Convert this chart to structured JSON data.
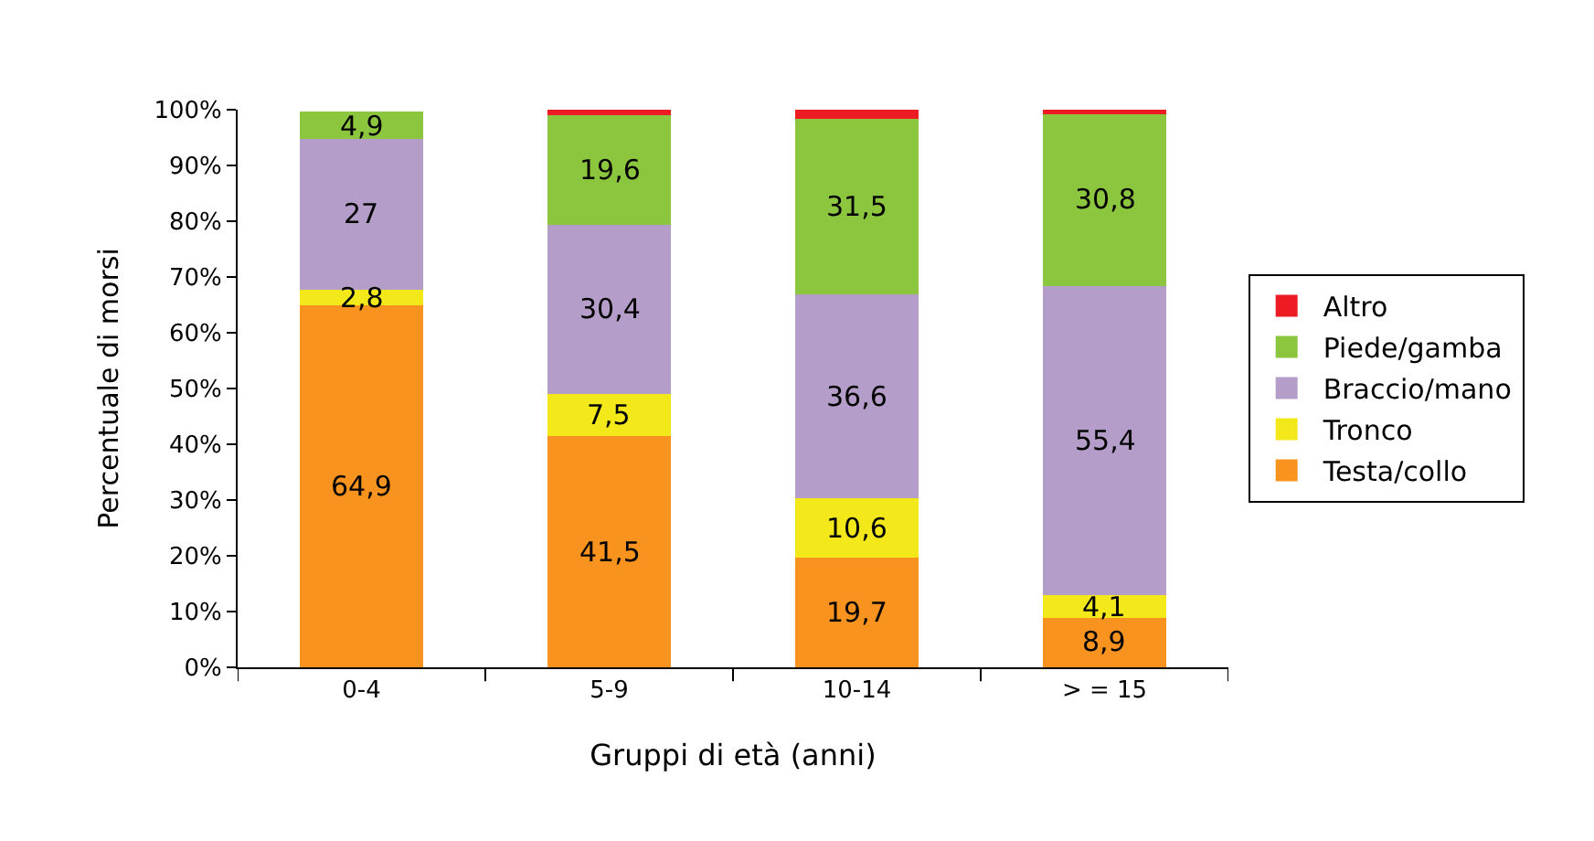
{
  "chart_data": {
    "type": "bar",
    "stacked": true,
    "xlabel": "Gruppi di età (anni)",
    "ylabel": "Percentuale di morsi",
    "categories": [
      "0-4",
      "5-9",
      "10-14",
      "> = 15"
    ],
    "series": [
      {
        "name": "Testa/collo",
        "color": "#f7931e",
        "values": [
          64.9,
          41.5,
          19.7,
          8.9
        ],
        "value_labels": [
          "64,9",
          "41,5",
          "19,7",
          "8,9"
        ]
      },
      {
        "name": "Tronco",
        "color": "#f2e81a",
        "values": [
          2.8,
          7.5,
          10.6,
          4.1
        ],
        "value_labels": [
          "2,8",
          "7,5",
          "10,6",
          "4,1"
        ]
      },
      {
        "name": "Braccio/mano",
        "color": "#b59dc9",
        "values": [
          27,
          30.4,
          36.6,
          55.4
        ],
        "value_labels": [
          "27",
          "30,4",
          "36,6",
          "55,4"
        ]
      },
      {
        "name": "Piede/gamba",
        "color": "#8cc63f",
        "values": [
          4.9,
          19.6,
          31.5,
          30.8
        ],
        "value_labels": [
          "4,9",
          "19,6",
          "31,5",
          "30,8"
        ]
      },
      {
        "name": "Altro",
        "color": "#ed1c24",
        "values": [
          null,
          1.0,
          1.6,
          0.8
        ],
        "value_labels": [
          null,
          null,
          null,
          null
        ]
      }
    ],
    "ylim": [
      0,
      100
    ],
    "yticks": [
      {
        "value": 0,
        "label": "0%"
      },
      {
        "value": 10,
        "label": "10%"
      },
      {
        "value": 20,
        "label": "20%"
      },
      {
        "value": 30,
        "label": "30%"
      },
      {
        "value": 40,
        "label": "40%"
      },
      {
        "value": 50,
        "label": "50%"
      },
      {
        "value": 60,
        "label": "60%"
      },
      {
        "value": 70,
        "label": "70%"
      },
      {
        "value": 80,
        "label": "80%"
      },
      {
        "value": 90,
        "label": "90%"
      },
      {
        "value": 100,
        "label": "100%"
      }
    ],
    "grid": false,
    "legend": "right"
  }
}
